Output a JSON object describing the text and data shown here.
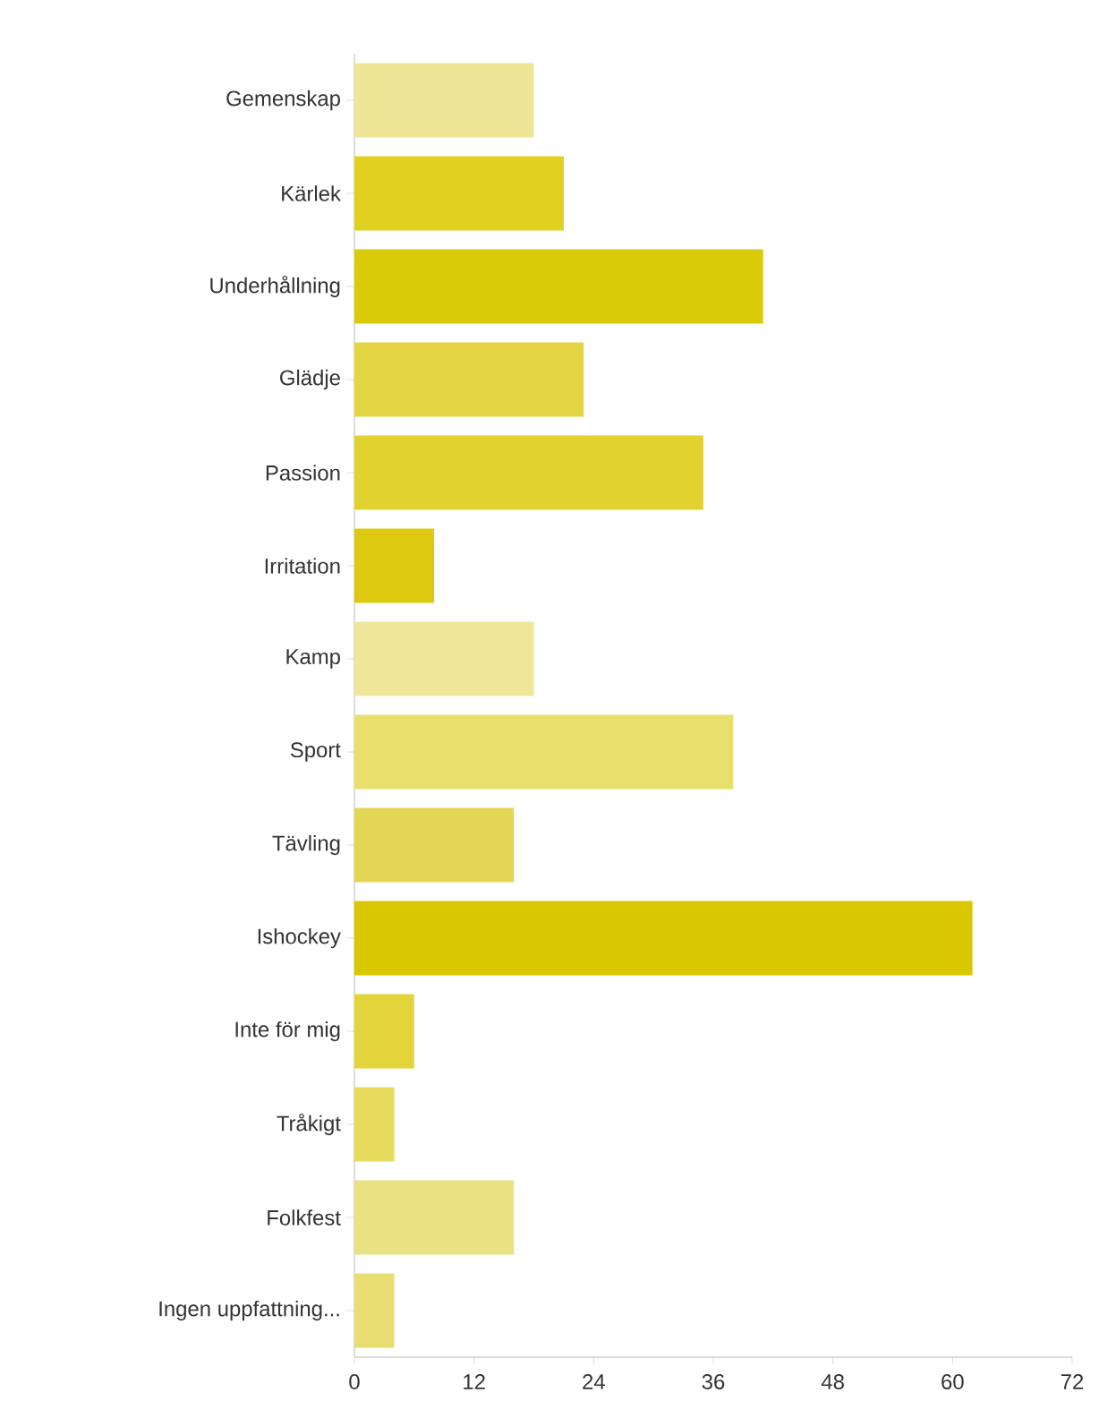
{
  "chart_data": {
    "type": "bar",
    "orientation": "horizontal",
    "categories": [
      "Gemenskap",
      "Kärlek",
      "Underhållning",
      "Glädje",
      "Passion",
      "Irritation",
      "Kamp",
      "Sport",
      "Tävling",
      "Ishockey",
      "Inte för mig",
      "Tråkigt",
      "Folkfest",
      "Ingen uppfattning..."
    ],
    "values": [
      18,
      21,
      41,
      23,
      35,
      8,
      18,
      38,
      16,
      62,
      6,
      4,
      16,
      4
    ],
    "colors": [
      "#efe597",
      "#e0d020",
      "#dacb0a",
      "#e3d544",
      "#e2d230",
      "#dcc910",
      "#efe69a",
      "#e8df6c",
      "#e4d655",
      "#d9c800",
      "#e2d43a",
      "#e6db5c",
      "#e9e182",
      "#e7dd70"
    ],
    "xlim": [
      0,
      72
    ],
    "xticks": [
      0,
      12,
      24,
      36,
      48,
      60,
      72
    ],
    "grid": false
  }
}
